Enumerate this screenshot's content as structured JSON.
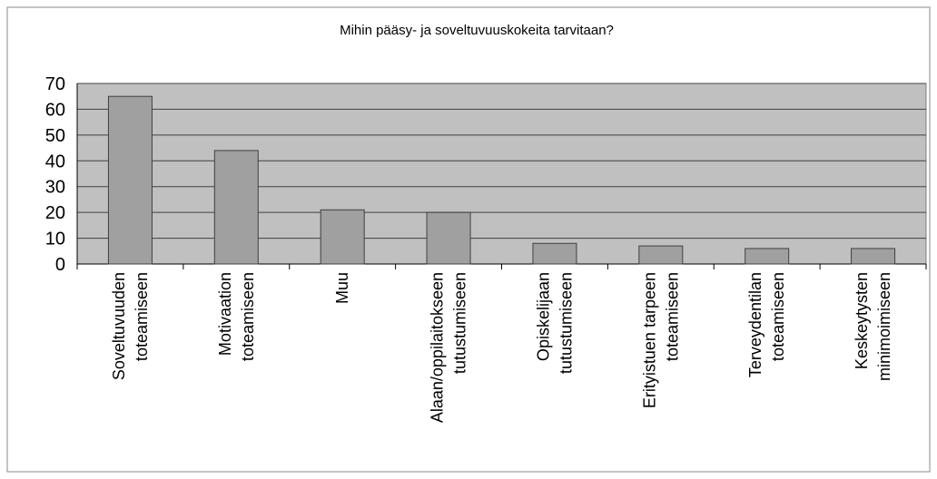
{
  "chart_data": {
    "type": "bar",
    "title": "Mihin pääsy- ja soveltuvuuskokeita tarvitaan?",
    "categories": [
      "Soveltuvuuden\ntoteamiseen",
      "Motivaation\ntoteamiseen",
      "Muu",
      "Alaan/oppilaitokseen\ntutustumiseen",
      "Opiskelijaan\ntutustumiseen",
      "Erityistuen tarpeen\ntoteamiseen",
      "Terveydentilan\ntoteamiseen",
      "Keskeytysten\nminimoimiseen"
    ],
    "values": [
      65,
      44,
      21,
      20,
      8,
      7,
      6,
      6
    ],
    "color": "#a0a0a0",
    "ylim": [
      0,
      70
    ],
    "yticks": [
      0,
      10,
      20,
      30,
      40,
      50,
      60,
      70
    ],
    "grid": true
  }
}
